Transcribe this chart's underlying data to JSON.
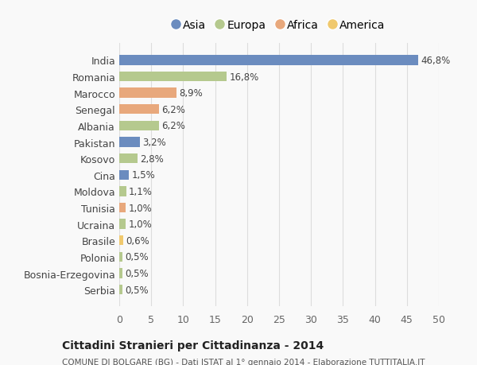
{
  "countries": [
    "India",
    "Romania",
    "Marocco",
    "Senegal",
    "Albania",
    "Pakistan",
    "Kosovo",
    "Cina",
    "Moldova",
    "Tunisia",
    "Ucraina",
    "Brasile",
    "Polonia",
    "Bosnia-Erzegovina",
    "Serbia"
  ],
  "values": [
    46.8,
    16.8,
    8.9,
    6.2,
    6.2,
    3.2,
    2.8,
    1.5,
    1.1,
    1.0,
    1.0,
    0.6,
    0.5,
    0.5,
    0.5
  ],
  "labels": [
    "46,8%",
    "16,8%",
    "8,9%",
    "6,2%",
    "6,2%",
    "3,2%",
    "2,8%",
    "1,5%",
    "1,1%",
    "1,0%",
    "1,0%",
    "0,6%",
    "0,5%",
    "0,5%",
    "0,5%"
  ],
  "colors": [
    "#6b8cbf",
    "#b5c98e",
    "#e8a87c",
    "#e8a87c",
    "#b5c98e",
    "#6b8cbf",
    "#b5c98e",
    "#6b8cbf",
    "#b5c98e",
    "#e8a87c",
    "#b5c98e",
    "#f0c96e",
    "#b5c98e",
    "#b5c98e",
    "#b5c98e"
  ],
  "legend_labels": [
    "Asia",
    "Europa",
    "Africa",
    "America"
  ],
  "legend_colors": [
    "#6b8cbf",
    "#b5c98e",
    "#e8a87c",
    "#f0c96e"
  ],
  "title": "Cittadini Stranieri per Cittadinanza - 2014",
  "subtitle": "COMUNE DI BOLGARE (BG) - Dati ISTAT al 1° gennaio 2014 - Elaborazione TUTTITALIA.IT",
  "xlim": [
    0,
    50
  ],
  "xticks": [
    0,
    5,
    10,
    15,
    20,
    25,
    30,
    35,
    40,
    45,
    50
  ],
  "background_color": "#f9f9f9",
  "grid_color": "#dddddd"
}
